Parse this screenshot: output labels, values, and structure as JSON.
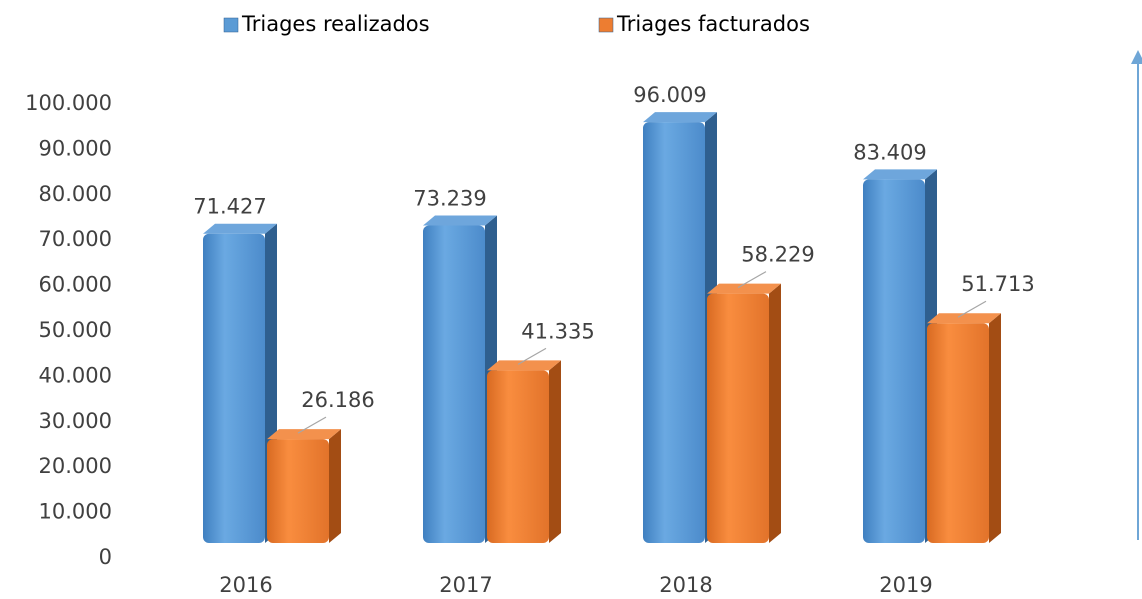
{
  "chart_data": {
    "type": "bar3d",
    "categories": [
      "2016",
      "2017",
      "2018",
      "2019"
    ],
    "series": [
      {
        "name": "Triages realizados",
        "color": "#5b9bd5",
        "values": [
          71427,
          73239,
          96009,
          83409
        ],
        "value_labels": [
          "71.427",
          "73.239",
          "96.009",
          "83.409"
        ]
      },
      {
        "name": "Triages facturados",
        "color": "#ed7d31",
        "values": [
          26186,
          41335,
          58229,
          51713
        ],
        "value_labels": [
          "26.186",
          "41.335",
          "58.229",
          "51.713"
        ]
      }
    ],
    "ylim": [
      0,
      100000
    ],
    "yticks": [
      0,
      {
        "value": 10000,
        "label": "10.000"
      },
      {
        "value": 20000,
        "label": "20.000"
      },
      {
        "value": 30000,
        "label": "30.000"
      },
      {
        "value": 40000,
        "label": "40.000"
      },
      {
        "value": 50000,
        "label": "50.000"
      },
      {
        "value": 60000,
        "label": "60.000"
      },
      {
        "value": 70000,
        "label": "70.000"
      },
      {
        "value": 80000,
        "label": "80.000"
      },
      {
        "value": 90000,
        "label": "90.000"
      },
      {
        "value": 100000,
        "label": "100.000"
      }
    ],
    "grid": false
  }
}
